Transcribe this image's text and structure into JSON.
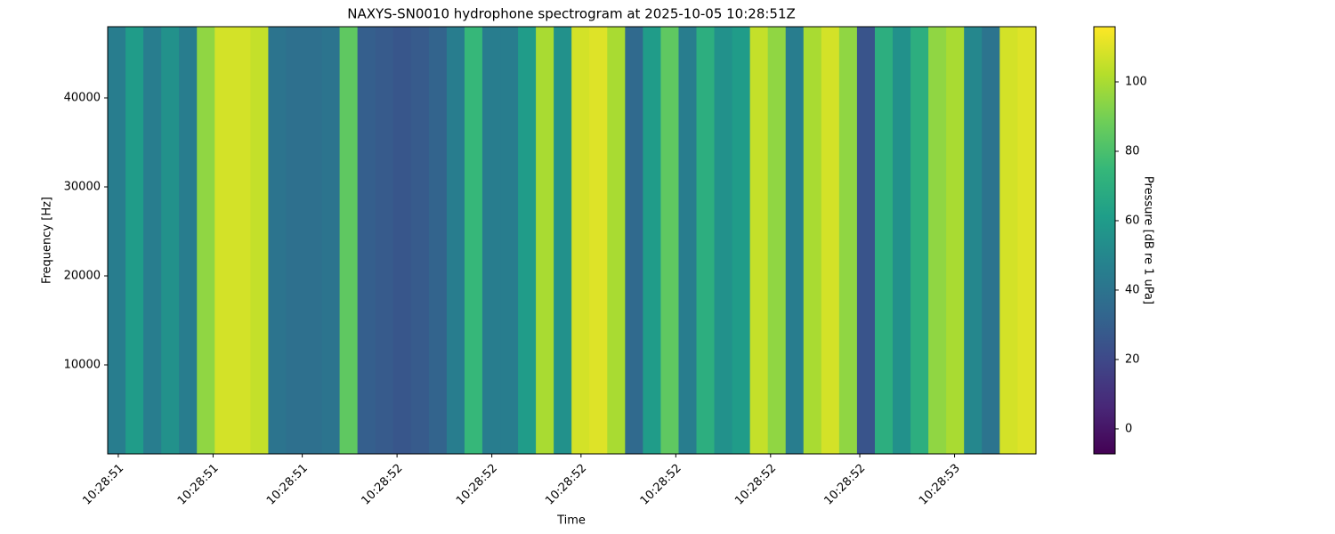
{
  "chart_data": {
    "type": "heatmap",
    "title": "NAXYS-SN0010 hydrophone spectrogram at 2025-10-05 10:28:51Z",
    "xlabel": "Time",
    "ylabel": "Frequency [Hz]",
    "colorbar_label": "Pressure [dB re 1 uPa]",
    "colormap": "viridis",
    "x": [
      50.997,
      51.029,
      51.061,
      51.093,
      51.125,
      51.157,
      51.189,
      51.221,
      51.253,
      51.285,
      51.317,
      51.349,
      51.381,
      51.413,
      51.445,
      51.477,
      51.509,
      51.541,
      51.573,
      51.605,
      51.637,
      51.669,
      51.701,
      51.733,
      51.765,
      51.797,
      51.829,
      51.861,
      51.893,
      51.925,
      51.957,
      51.989,
      52.021,
      52.053,
      52.085,
      52.117,
      52.149,
      52.181,
      52.213,
      52.245,
      52.277,
      52.309,
      52.341,
      52.373,
      52.405,
      52.437,
      52.469,
      52.501,
      52.533,
      52.565,
      52.597,
      52.629
    ],
    "values": [
      45,
      60,
      45,
      55,
      45,
      95,
      108,
      108,
      105,
      40,
      38,
      38,
      40,
      85,
      30,
      28,
      26,
      28,
      32,
      45,
      75,
      45,
      45,
      60,
      100,
      55,
      108,
      110,
      100,
      35,
      60,
      85,
      45,
      70,
      55,
      60,
      105,
      95,
      45,
      100,
      108,
      95,
      25,
      70,
      55,
      70,
      95,
      100,
      50,
      40,
      108,
      110
    ],
    "xlim": [
      50.981,
      52.646
    ],
    "xticks": [
      {
        "value": 51.0,
        "label": "10:28:51"
      },
      {
        "value": 51.17,
        "label": "10:28:51"
      },
      {
        "value": 51.33,
        "label": "10:28:51"
      },
      {
        "value": 51.5,
        "label": "10:28:52"
      },
      {
        "value": 51.67,
        "label": "10:28:52"
      },
      {
        "value": 51.83,
        "label": "10:28:52"
      },
      {
        "value": 52.0,
        "label": "10:28:52"
      },
      {
        "value": 52.17,
        "label": "10:28:52"
      },
      {
        "value": 52.33,
        "label": "10:28:52"
      },
      {
        "value": 52.5,
        "label": "10:28:53"
      }
    ],
    "ylim": [
      0,
      48000
    ],
    "yticks": [
      10000,
      20000,
      30000,
      40000
    ],
    "clim": [
      -7.2,
      115.9
    ],
    "cticks": [
      0,
      20,
      40,
      60,
      80,
      100
    ]
  }
}
